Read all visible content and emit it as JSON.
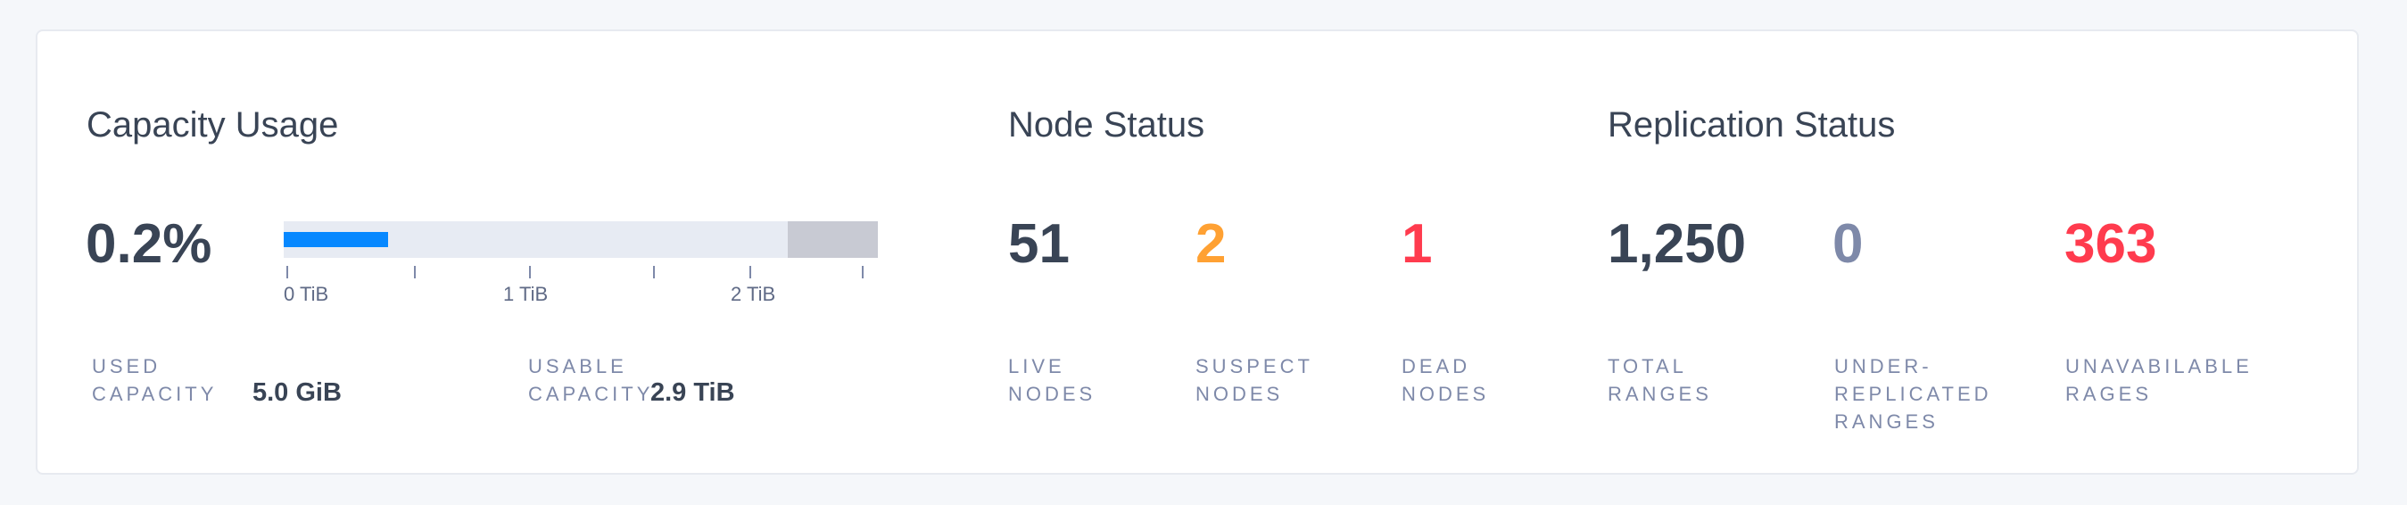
{
  "capacity": {
    "title": "Capacity Usage",
    "percent": "0.2%",
    "bar": {
      "used_fraction": 0.175,
      "reserved_fraction": 0.152,
      "used_color": "#0788ff",
      "track_color": "#e7ebf3",
      "reserved_color": "#c8cad3"
    },
    "ticks": [
      "0 TiB",
      "1 TiB",
      "2 TiB"
    ],
    "used_label": "USED CAPACITY",
    "used_value": "5.0 GiB",
    "usable_label": "USABLE CAPACITY",
    "usable_value": "2.9 TiB"
  },
  "nodes": {
    "title": "Node Status",
    "items": [
      {
        "value": "51",
        "label": "LIVE NODES",
        "color": "#394455"
      },
      {
        "value": "2",
        "label": "SUSPECT NODES",
        "color": "#ffa133"
      },
      {
        "value": "1",
        "label": "DEAD NODES",
        "color": "#ff3b4e"
      }
    ]
  },
  "replication": {
    "title": "Replication Status",
    "items": [
      {
        "value": "1,250",
        "label": "TOTAL RANGES",
        "color": "#394455"
      },
      {
        "value": "0",
        "label": "UNDER-REPLICATED RANGES",
        "color": "#7e89a9"
      },
      {
        "value": "363",
        "label": "UNAVABILABLE RAGES",
        "color": "#ff3b4e"
      }
    ]
  }
}
